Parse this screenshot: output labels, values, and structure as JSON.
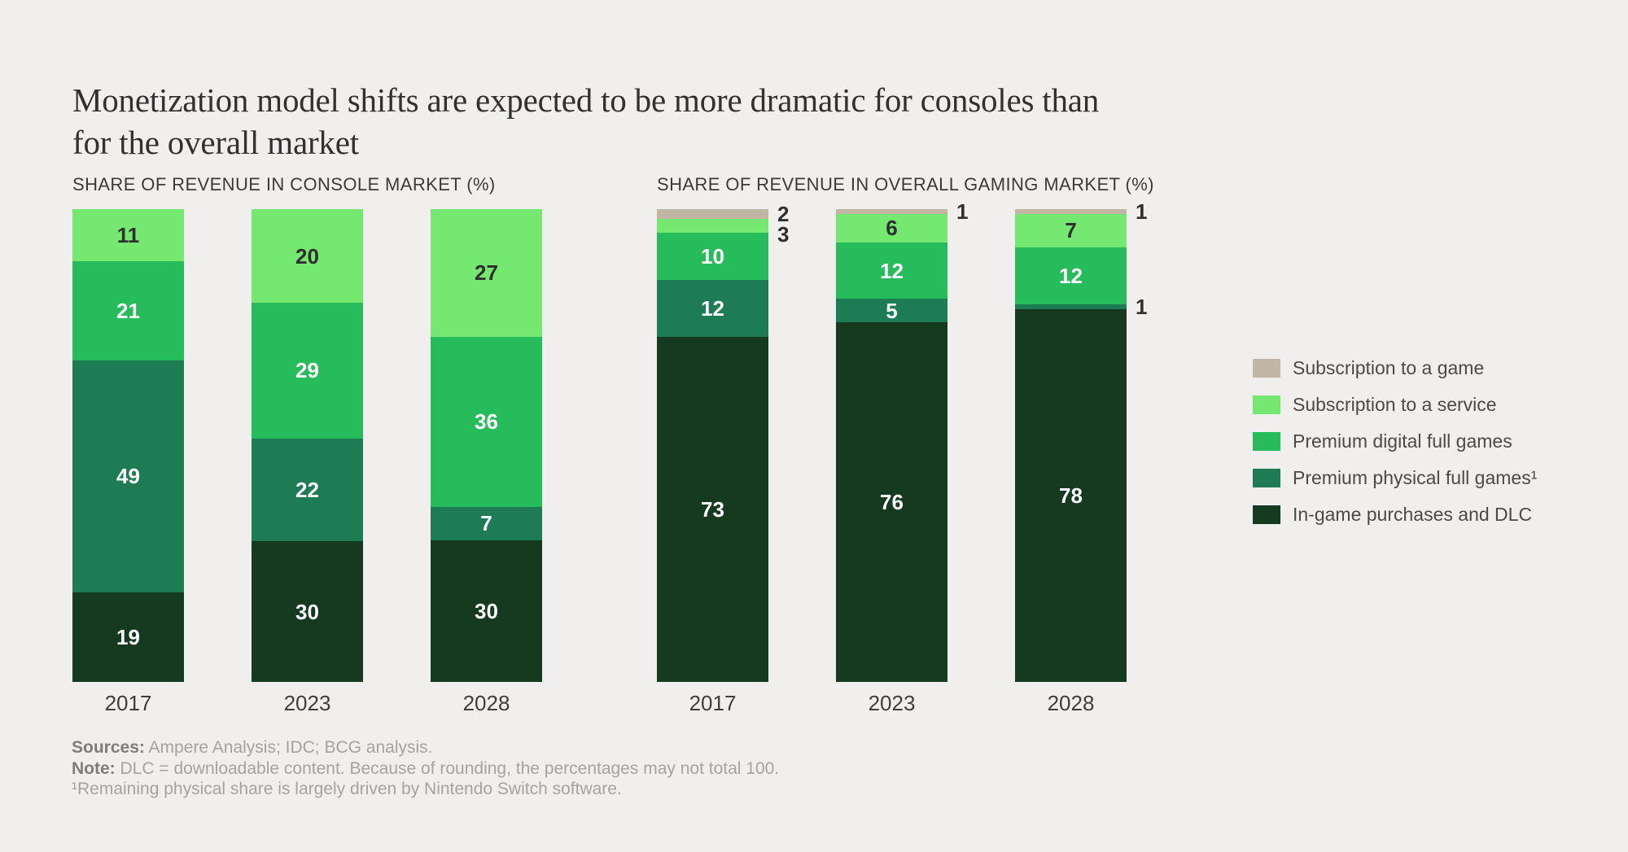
{
  "header": {
    "title_lines": [
      "Monetization model shifts are expected to be more dramatic for consoles than",
      "for the overall market"
    ]
  },
  "colors": {
    "background": "#f0efee",
    "title_text": "#313131",
    "outside_label_text": "#2f2f2f"
  },
  "chart_data": {
    "type": "bar",
    "variant": "stacked-100",
    "unit": "%",
    "ylim": [
      0,
      100
    ],
    "grid": false,
    "legend_position": "right",
    "series": [
      {
        "name": "Subscription to a game",
        "color": "#c1b5a4",
        "text_color": "#2f2f2f"
      },
      {
        "name": "Subscription to a service",
        "color": "#74e871",
        "text_color": "#2f2f2f"
      },
      {
        "name": "Premium digital full games",
        "color": "#27bc5b",
        "text_color": "#ffffff"
      },
      {
        "name": "Premium physical full games",
        "color": "#1e7c55",
        "text_color": "#ffffff",
        "footnote_mark": "¹"
      },
      {
        "name": "In-game purchases and DLC",
        "color": "#163a20",
        "text_color": "#ffffff"
      }
    ],
    "charts": [
      {
        "title": "SHARE OF REVENUE IN CONSOLE MARKET (%)",
        "categories": [
          "2017",
          "2023",
          "2028"
        ],
        "bars": [
          {
            "category": "2017",
            "segments": [
              {
                "series": 1,
                "value": 11
              },
              {
                "series": 2,
                "value": 21
              },
              {
                "series": 3,
                "value": 49
              },
              {
                "series": 4,
                "value": 19
              }
            ]
          },
          {
            "category": "2023",
            "segments": [
              {
                "series": 1,
                "value": 20
              },
              {
                "series": 2,
                "value": 29
              },
              {
                "series": 3,
                "value": 22
              },
              {
                "series": 4,
                "value": 30
              }
            ]
          },
          {
            "category": "2028",
            "segments": [
              {
                "series": 1,
                "value": 27
              },
              {
                "series": 2,
                "value": 36
              },
              {
                "series": 3,
                "value": 7
              },
              {
                "series": 4,
                "value": 30
              }
            ]
          }
        ]
      },
      {
        "title": "SHARE OF REVENUE IN OVERALL GAMING MARKET (%)",
        "categories": [
          "2017",
          "2023",
          "2028"
        ],
        "bars": [
          {
            "category": "2017",
            "segments": [
              {
                "series": 0,
                "value": 2,
                "label_outside": true
              },
              {
                "series": 1,
                "value": 3,
                "label_outside": true
              },
              {
                "series": 2,
                "value": 10
              },
              {
                "series": 3,
                "value": 12
              },
              {
                "series": 4,
                "value": 73
              }
            ]
          },
          {
            "category": "2023",
            "segments": [
              {
                "series": 0,
                "value": 1,
                "label_outside": true
              },
              {
                "series": 1,
                "value": 6
              },
              {
                "series": 2,
                "value": 12
              },
              {
                "series": 3,
                "value": 5
              },
              {
                "series": 4,
                "value": 76
              }
            ]
          },
          {
            "category": "2028",
            "segments": [
              {
                "series": 0,
                "value": 1,
                "label_outside": true
              },
              {
                "series": 1,
                "value": 7
              },
              {
                "series": 2,
                "value": 12
              },
              {
                "series": 3,
                "value": 1,
                "label_outside": true
              },
              {
                "series": 4,
                "value": 78
              }
            ]
          }
        ]
      }
    ]
  },
  "footer": {
    "sources_label": "Sources:",
    "sources_text": " Ampere Analysis; IDC; BCG analysis.",
    "note_label": "Note:",
    "note_text": " DLC = downloadable content. Because of rounding, the percentages may not total 100.",
    "footnote": "¹Remaining physical share is largely driven by Nintendo Switch software."
  }
}
